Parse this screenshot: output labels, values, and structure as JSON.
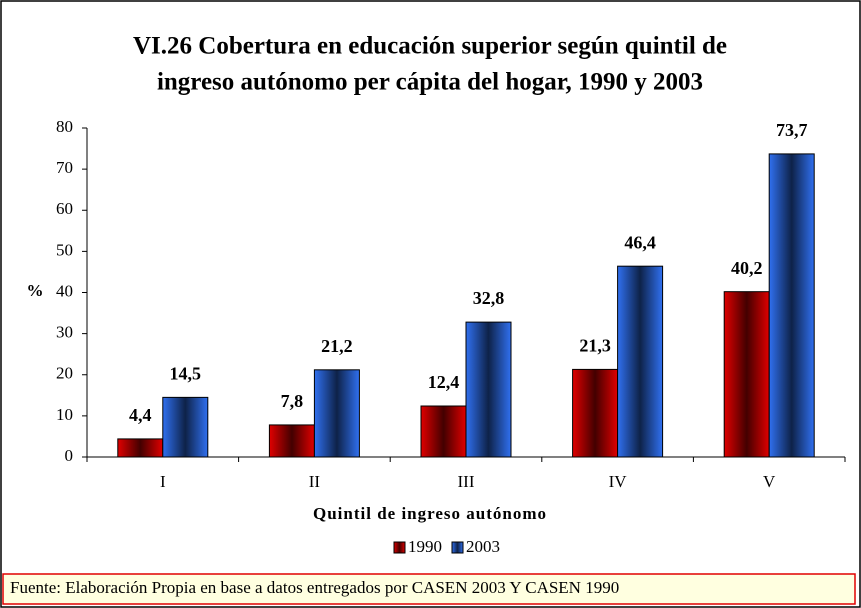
{
  "chart_data": {
    "type": "bar",
    "title": [
      "VI.26 Cobertura en educación superior según quintil de",
      "ingreso autónomo per cápita del hogar, 1990 y 2003"
    ],
    "x_label": "Quintil de ingreso autónomo",
    "y_label": "%",
    "categories": [
      "I",
      "II",
      "III",
      "IV",
      "V"
    ],
    "series": [
      {
        "name": "1990",
        "color": "#e00000",
        "values": [
          4.4,
          7.8,
          12.4,
          21.3,
          40.2
        ],
        "value_labels": [
          "4,4",
          "7,8",
          "12,4",
          "21,3",
          "40,2"
        ]
      },
      {
        "name": "2003",
        "color": "#3070f0",
        "values": [
          14.5,
          21.2,
          32.8,
          46.4,
          73.7
        ],
        "value_labels": [
          "14,5",
          "21,2",
          "32,8",
          "46,4",
          "73,7"
        ]
      }
    ],
    "ylim": [
      0,
      80
    ],
    "yticks": [
      0,
      10,
      20,
      30,
      40,
      50,
      60,
      70,
      80
    ],
    "legend": "bottom",
    "source": "Fuente: Elaboración Propia en base a datos entregados por CASEN 2003 Y CASEN 1990"
  }
}
